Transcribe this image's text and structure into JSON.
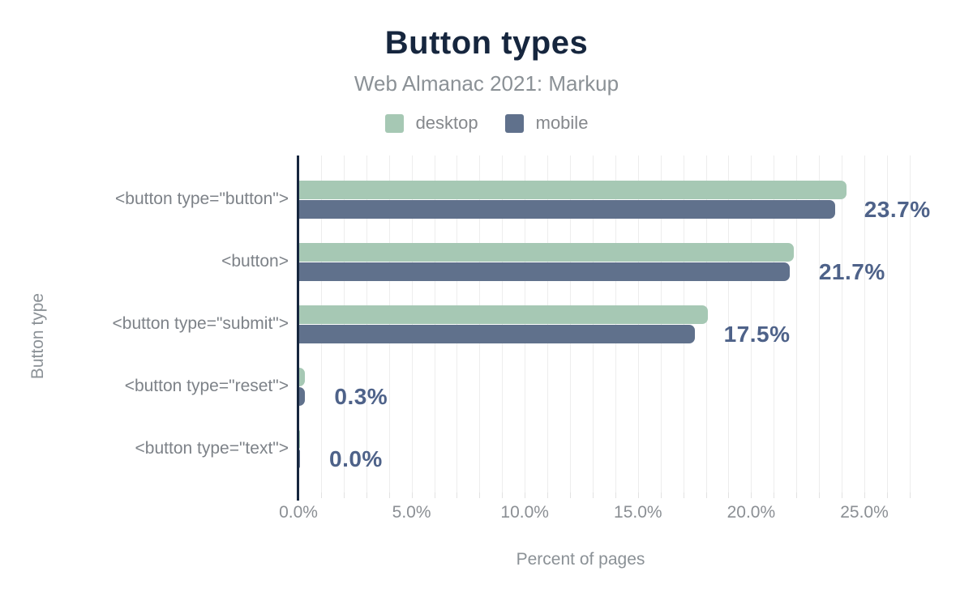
{
  "colors": {
    "title": "#16263e",
    "subtitle_gray": "#8b9196",
    "axis_line": "#16263e",
    "gridline": "#ededed",
    "category_text": "#7d8288",
    "tick_text": "#8b8f94",
    "value_label_text": "#4e6289",
    "desktop": "#a6c8b4",
    "mobile": "#60718c"
  },
  "chart_data": {
    "type": "bar",
    "orientation": "horizontal",
    "title": "Button types",
    "subtitle": "Web Almanac 2021: Markup",
    "xlabel": "Percent of pages",
    "ylabel": "Button type",
    "legend_position": "top",
    "grid": "minor vertical gridlines every 1%",
    "xlim": [
      0,
      27.2
    ],
    "categories": [
      "<button type=\"button\">",
      "<button>",
      "<button type=\"submit\">",
      "<button type=\"reset\">",
      "<button type=\"text\">"
    ],
    "series": [
      {
        "name": "desktop",
        "color": "#a6c8b4",
        "values": [
          24.2,
          21.9,
          18.1,
          0.3,
          0.0
        ]
      },
      {
        "name": "mobile",
        "color": "#60718c",
        "values": [
          23.7,
          21.7,
          17.5,
          0.3,
          0.0
        ]
      }
    ],
    "value_labels": [
      "23.7%",
      "21.7%",
      "17.5%",
      "0.3%",
      "0.0%"
    ],
    "xticks": [
      {
        "value": 0,
        "label": "0.0%"
      },
      {
        "value": 5,
        "label": "5.0%"
      },
      {
        "value": 10,
        "label": "10.0%"
      },
      {
        "value": 15,
        "label": "15.0%"
      },
      {
        "value": 20,
        "label": "20.0%"
      },
      {
        "value": 25,
        "label": "25.0%"
      }
    ]
  }
}
